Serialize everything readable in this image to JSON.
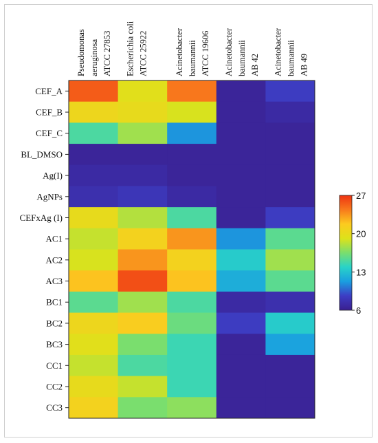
{
  "chart_data": {
    "type": "heatmap",
    "title": "",
    "xlabel": "",
    "ylabel": "",
    "columns": [
      [
        "Pseudomonas",
        "aeruginosa",
        "ATCC 27853"
      ],
      [
        "Escherichia coli",
        "ATCC 25922"
      ],
      [
        "Acinetobacter",
        "baumannii",
        "ATCC 19606"
      ],
      [
        "Acinetobacter",
        "baumannii",
        "AB 42"
      ],
      [
        "Acinetobacter",
        "baumannii",
        "AB 49"
      ]
    ],
    "rows": [
      "CEF_A",
      "CEF_B",
      "CEF_C",
      "BL_DMSO",
      "Ag(I)",
      "AgNPs",
      "CEFxAg (I)",
      "AC1",
      "AC2",
      "AC3",
      "BC1",
      "BC2",
      "BC3",
      "CC1",
      "CC2",
      "CC3"
    ],
    "values": [
      [
        25.5,
        19.5,
        24.5,
        6.5,
        8.5
      ],
      [
        20.5,
        20,
        19,
        6.5,
        7
      ],
      [
        15,
        17.5,
        11,
        6.5,
        6.5
      ],
      [
        6.5,
        6.5,
        6.5,
        6.5,
        6.5
      ],
      [
        7,
        7,
        6.5,
        6.5,
        6.5
      ],
      [
        7.5,
        8,
        7,
        6.5,
        6.5
      ],
      [
        20,
        18,
        15,
        6.5,
        8.5
      ],
      [
        18.5,
        21,
        23.5,
        11,
        15.5
      ],
      [
        19,
        23.5,
        21,
        13.5,
        17.5
      ],
      [
        22,
        26,
        22,
        12,
        15.5
      ],
      [
        15.5,
        17.5,
        15,
        7,
        7.5
      ],
      [
        20.5,
        21.5,
        16,
        8.5,
        13.5
      ],
      [
        19.5,
        16.5,
        14.5,
        6.5,
        11.5
      ],
      [
        18.5,
        15,
        14.5,
        6.5,
        6.5
      ],
      [
        20,
        18.5,
        14.5,
        6.5,
        6.5
      ],
      [
        21,
        16.5,
        17,
        6.5,
        6.5
      ]
    ],
    "colorbar": {
      "min": 6,
      "max": 27,
      "ticks": [
        27,
        20,
        13,
        6
      ]
    },
    "colormap": [
      "#3a1f8f",
      "#3d3dc4",
      "#1a9ee0",
      "#29d3c8",
      "#7ade6e",
      "#dde21a",
      "#fccb1f",
      "#f87a1c",
      "#ee3412"
    ]
  }
}
